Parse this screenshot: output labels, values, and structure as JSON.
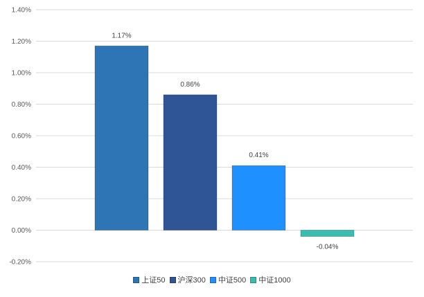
{
  "chart_data": {
    "type": "bar",
    "categories": [
      "上证50",
      "沪深300",
      "中证500",
      "中证1000"
    ],
    "values": [
      1.17,
      0.86,
      0.41,
      -0.04
    ],
    "value_labels": [
      "1.17%",
      "0.86%",
      "0.41%",
      "-0.04%"
    ],
    "colors": [
      "#2e75b6",
      "#2f5597",
      "#1e90ff",
      "#38bdb0"
    ],
    "ylim": [
      -0.2,
      1.4
    ],
    "yticks": [
      -0.2,
      0,
      0.2,
      0.4,
      0.6,
      0.8,
      1.0,
      1.2,
      1.4
    ],
    "ytick_labels": [
      "-0.20%",
      "0.00%",
      "0.20%",
      "0.40%",
      "0.60%",
      "0.80%",
      "1.00%",
      "1.20%",
      "1.40%"
    ],
    "title": "",
    "xlabel": "",
    "ylabel": "",
    "grid": true,
    "legend_position": "bottom"
  }
}
